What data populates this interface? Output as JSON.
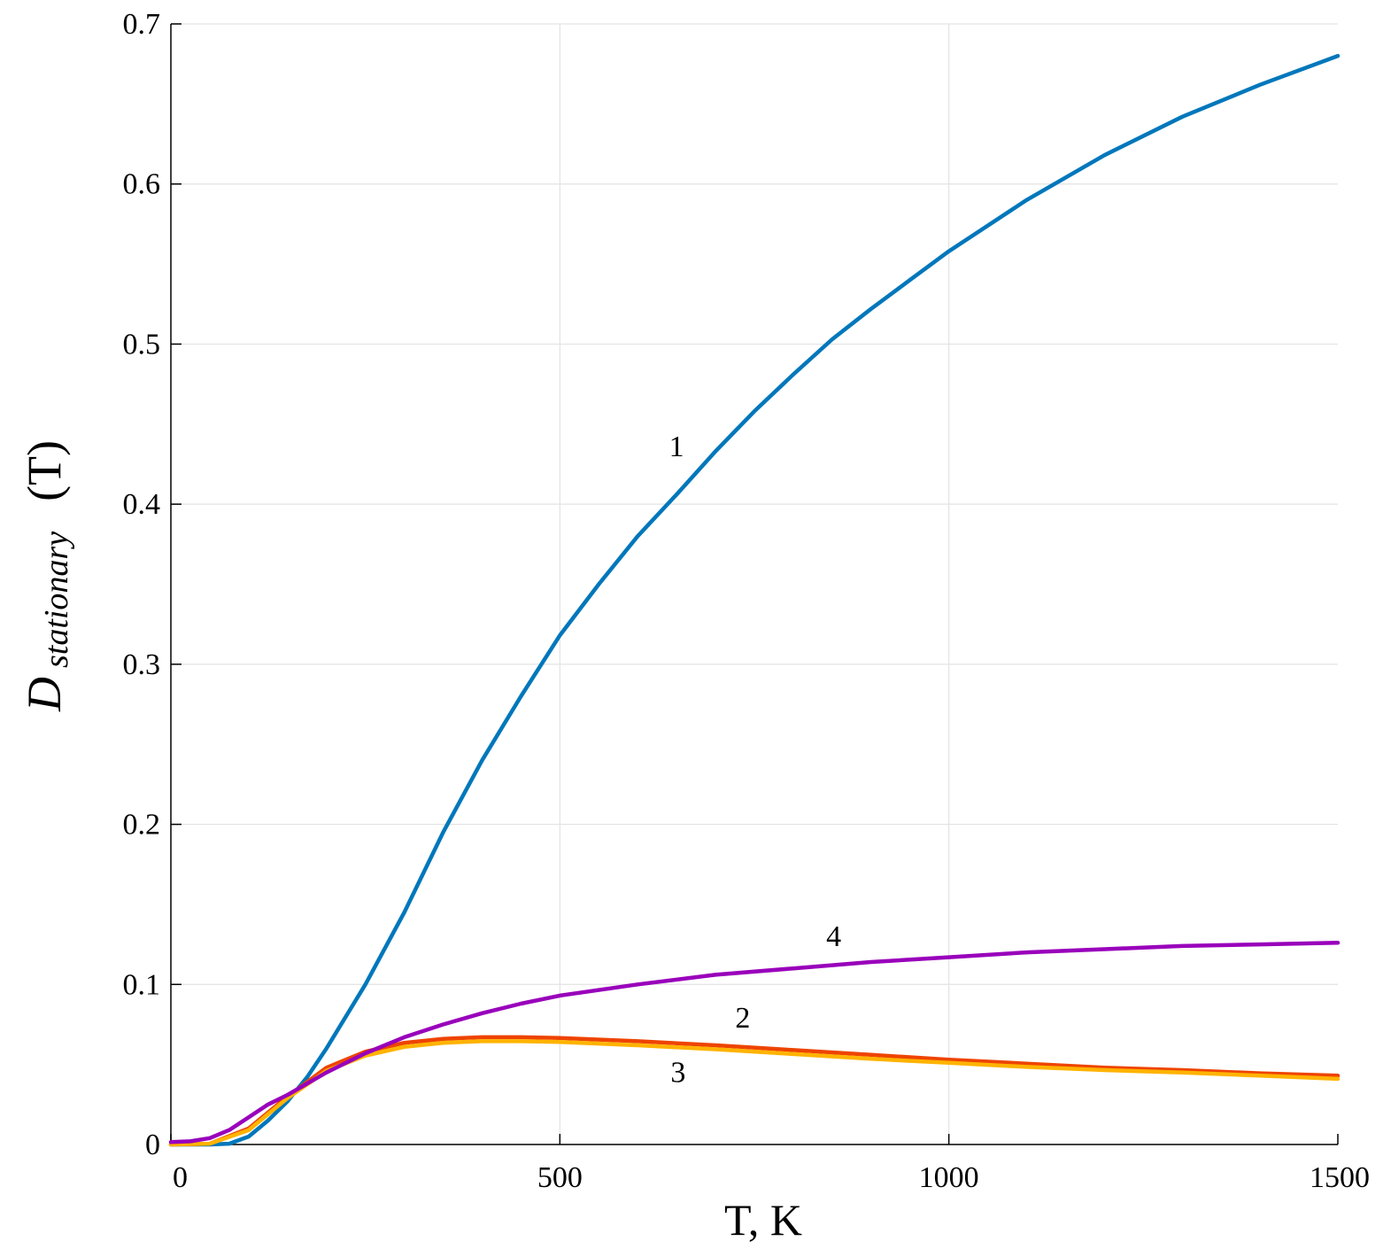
{
  "chart_data": {
    "type": "line",
    "title": "",
    "xlabel": "T, K",
    "ylabel": {
      "main": "D",
      "subscript": "stationary",
      "unit": "(T)"
    },
    "xlim": [
      0,
      1500
    ],
    "ylim": [
      0,
      0.7
    ],
    "xticks": [
      0,
      500,
      1000,
      1500
    ],
    "yticks": [
      0,
      0.1,
      0.2,
      0.3,
      0.4,
      0.5,
      0.6,
      0.7
    ],
    "xtick_labels": [
      "0",
      "500",
      "1000",
      "1500"
    ],
    "ytick_labels": [
      "0",
      "0.1",
      "0.2",
      "0.3",
      "0.4",
      "0.5",
      "0.6",
      "0.7"
    ],
    "grid": true,
    "series": [
      {
        "name": "1",
        "color": "#0077bb",
        "label_at": [
          650,
          0.43
        ],
        "x": [
          0,
          50,
          75,
          100,
          125,
          150,
          175,
          200,
          250,
          300,
          350,
          400,
          450,
          500,
          550,
          600,
          650,
          700,
          750,
          800,
          850,
          900,
          950,
          1000,
          1100,
          1200,
          1300,
          1400,
          1500
        ],
        "y": [
          0,
          0,
          0.0005,
          0.005,
          0.015,
          0.027,
          0.042,
          0.06,
          0.1,
          0.145,
          0.195,
          0.24,
          0.28,
          0.318,
          0.35,
          0.38,
          0.406,
          0.433,
          0.458,
          0.481,
          0.503,
          0.522,
          0.54,
          0.558,
          0.59,
          0.618,
          0.642,
          0.662,
          0.68
        ]
      },
      {
        "name": "2",
        "color": "#ee4400",
        "label_at": [
          735,
          0.073
        ],
        "x": [
          0,
          50,
          100,
          150,
          200,
          250,
          300,
          350,
          400,
          450,
          500,
          600,
          700,
          800,
          900,
          1000,
          1100,
          1200,
          1300,
          1400,
          1500
        ],
        "y": [
          0,
          0.0005,
          0.01,
          0.03,
          0.048,
          0.058,
          0.0635,
          0.066,
          0.067,
          0.067,
          0.0665,
          0.0645,
          0.062,
          0.059,
          0.056,
          0.053,
          0.0505,
          0.048,
          0.0465,
          0.0445,
          0.043
        ]
      },
      {
        "name": "3",
        "color": "#ffb300",
        "label_at": [
          652,
          0.039
        ],
        "x": [
          0,
          50,
          100,
          150,
          200,
          250,
          300,
          350,
          400,
          450,
          500,
          600,
          700,
          800,
          900,
          1000,
          1100,
          1200,
          1300,
          1400,
          1500
        ],
        "y": [
          0,
          0.0005,
          0.009,
          0.029,
          0.046,
          0.0555,
          0.061,
          0.0635,
          0.0645,
          0.0645,
          0.064,
          0.062,
          0.0595,
          0.0565,
          0.0535,
          0.051,
          0.0485,
          0.0465,
          0.045,
          0.043,
          0.041
        ]
      },
      {
        "name": "4",
        "color": "#9900bb",
        "label_at": [
          852,
          0.124
        ],
        "x": [
          0,
          25,
          50,
          75,
          100,
          125,
          150,
          175,
          200,
          250,
          300,
          350,
          400,
          450,
          500,
          600,
          700,
          800,
          900,
          1000,
          1100,
          1200,
          1300,
          1400,
          1500
        ],
        "y": [
          0.0015,
          0.002,
          0.004,
          0.009,
          0.017,
          0.025,
          0.031,
          0.038,
          0.045,
          0.057,
          0.067,
          0.075,
          0.082,
          0.088,
          0.093,
          0.1,
          0.106,
          0.11,
          0.114,
          0.117,
          0.12,
          0.122,
          0.124,
          0.125,
          0.126
        ]
      }
    ]
  }
}
